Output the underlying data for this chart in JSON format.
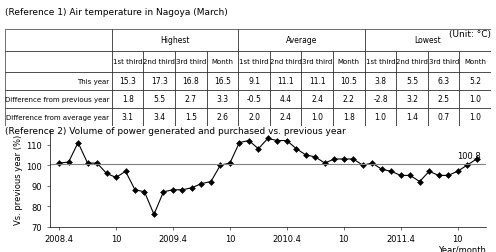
{
  "title1": "(Reference 1) Air temperature in Nagoya (March)",
  "unit": "(Unit: °C)",
  "table_headers_top": [
    "",
    "Highest",
    "",
    "",
    "",
    "Average",
    "",
    "",
    "",
    "Lowest",
    "",
    "",
    ""
  ],
  "table_headers_sub": [
    "",
    "1st third",
    "2nd third",
    "3rd third",
    "Month",
    "1st third",
    "2nd third",
    "3rd third",
    "Month",
    "1st third",
    "2nd third",
    "3rd third",
    "Month"
  ],
  "table_rows": [
    [
      "This year",
      15.3,
      17.3,
      16.8,
      16.5,
      9.1,
      11.1,
      11.1,
      10.5,
      3.8,
      5.5,
      6.3,
      5.2
    ],
    [
      "Difference from previous year",
      1.8,
      5.5,
      2.7,
      3.3,
      -0.5,
      4.4,
      2.4,
      2.2,
      -2.8,
      3.2,
      2.5,
      1.0
    ],
    [
      "Difference from average year",
      3.1,
      3.4,
      1.5,
      2.6,
      2.0,
      2.4,
      1.0,
      1.8,
      1.0,
      1.4,
      0.7,
      1.0
    ]
  ],
  "title2": "(Reference 2) Volume of power generated and purchased vs. previous year",
  "ylabel2": "Vs. previous year (%)",
  "xlabel2": "Year/month",
  "yticks2": [
    70,
    80,
    90,
    100,
    110
  ],
  "hline_y": 100.8,
  "hline_label": "100.8",
  "xtick_labels": [
    "2008.4",
    "10",
    "2009.4",
    "10",
    "2010.4",
    "10",
    "2011.4",
    "10"
  ],
  "line_data_x": [
    0,
    1,
    2,
    3,
    4,
    5,
    6,
    7,
    8,
    9,
    10,
    11,
    12,
    13,
    14,
    15,
    16,
    17,
    18,
    19,
    20,
    21,
    22,
    23,
    24,
    25,
    26,
    27,
    28,
    29,
    30,
    31,
    32,
    33,
    34,
    35,
    36,
    37,
    38,
    39,
    40,
    41,
    42,
    43,
    44
  ],
  "line_data_y": [
    101,
    101.5,
    111,
    101,
    101,
    96,
    94,
    97,
    88,
    87,
    76,
    87,
    88,
    88,
    89,
    91,
    92,
    100,
    101,
    111,
    112,
    108,
    113,
    112,
    112,
    108,
    105,
    104,
    101,
    103,
    103,
    103,
    100,
    101,
    98,
    97,
    95,
    95,
    92,
    97,
    95,
    95,
    97,
    100,
    103
  ],
  "bg_color": "#ffffff",
  "line_color": "#000000",
  "marker": "D",
  "marker_size": 3
}
